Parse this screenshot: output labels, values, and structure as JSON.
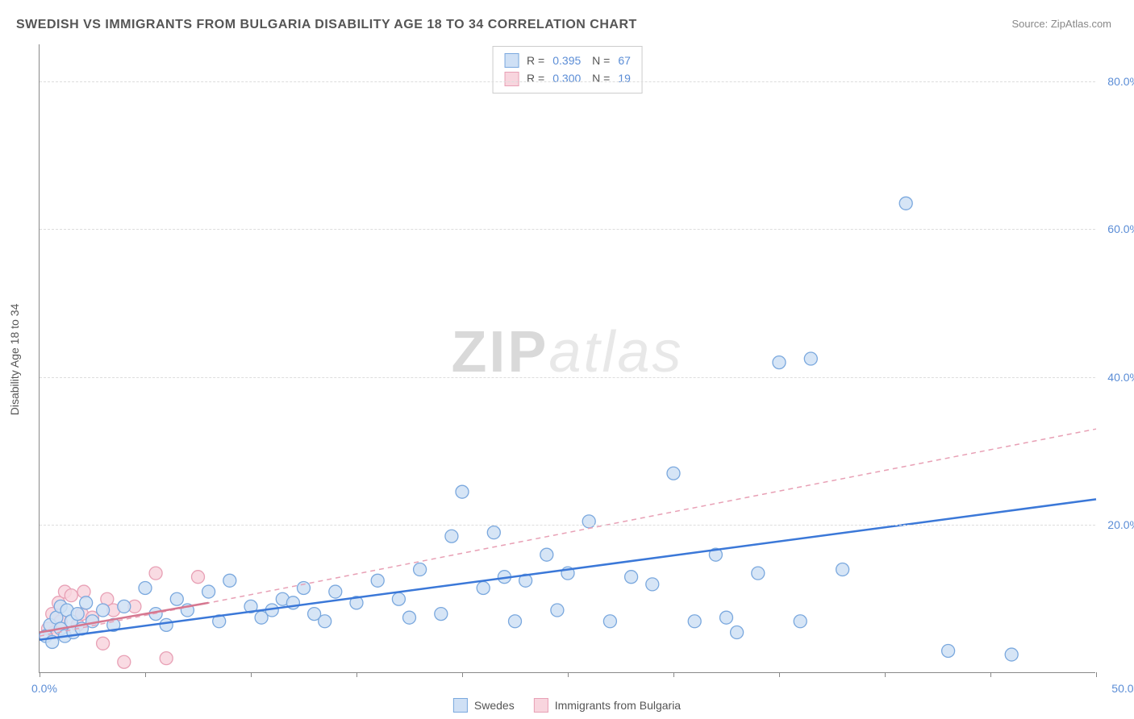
{
  "title": "SWEDISH VS IMMIGRANTS FROM BULGARIA DISABILITY AGE 18 TO 34 CORRELATION CHART",
  "source_label": "Source: ZipAtlas.com",
  "yaxis_title": "Disability Age 18 to 34",
  "watermark": {
    "zip": "ZIP",
    "atlas": "atlas"
  },
  "chart": {
    "type": "scatter",
    "background_color": "#ffffff",
    "grid_color": "#dddddd",
    "axis_color": "#888888",
    "xlim": [
      0,
      50
    ],
    "ylim": [
      0,
      85
    ],
    "xticks_minor": [
      0,
      5,
      10,
      15,
      20,
      25,
      30,
      35,
      40,
      45,
      50
    ],
    "xtick_labels": {
      "0": "0.0%",
      "50": "50.0%"
    },
    "yticks": [
      20,
      40,
      60,
      80
    ],
    "ytick_labels": {
      "20": "20.0%",
      "40": "40.0%",
      "60": "60.0%",
      "80": "80.0%"
    },
    "tick_fontsize": 14,
    "tick_color": "#5b8dd6",
    "label_fontsize": 14,
    "title_fontsize": 16,
    "marker_radius": 8,
    "series": [
      {
        "name": "Swedes",
        "fill": "#cfe0f5",
        "stroke": "#7aa8de",
        "R": "0.395",
        "N": "67",
        "trend": {
          "x1": 0,
          "y1": 4.5,
          "x2": 50,
          "y2": 23.5,
          "stroke": "#3b78d8",
          "width": 2.5,
          "dash": "none"
        },
        "points": [
          [
            0.3,
            5.0
          ],
          [
            0.5,
            6.5
          ],
          [
            0.6,
            4.2
          ],
          [
            0.8,
            7.5
          ],
          [
            1.0,
            6.0
          ],
          [
            1.0,
            9.0
          ],
          [
            1.2,
            5.0
          ],
          [
            1.3,
            8.5
          ],
          [
            1.5,
            7.0
          ],
          [
            1.6,
            5.5
          ],
          [
            1.8,
            8.0
          ],
          [
            2.0,
            6.0
          ],
          [
            2.2,
            9.5
          ],
          [
            2.5,
            7.0
          ],
          [
            3.0,
            8.5
          ],
          [
            3.5,
            6.5
          ],
          [
            4.0,
            9.0
          ],
          [
            5.0,
            11.5
          ],
          [
            5.5,
            8.0
          ],
          [
            6.0,
            6.5
          ],
          [
            6.5,
            10.0
          ],
          [
            7.0,
            8.5
          ],
          [
            8.0,
            11.0
          ],
          [
            8.5,
            7.0
          ],
          [
            9.0,
            12.5
          ],
          [
            10.0,
            9.0
          ],
          [
            10.5,
            7.5
          ],
          [
            11.0,
            8.5
          ],
          [
            11.5,
            10.0
          ],
          [
            12.0,
            9.5
          ],
          [
            12.5,
            11.5
          ],
          [
            13.0,
            8.0
          ],
          [
            13.5,
            7.0
          ],
          [
            14.0,
            11.0
          ],
          [
            15.0,
            9.5
          ],
          [
            16.0,
            12.5
          ],
          [
            17.0,
            10.0
          ],
          [
            17.5,
            7.5
          ],
          [
            18.0,
            14.0
          ],
          [
            19.0,
            8.0
          ],
          [
            19.5,
            18.5
          ],
          [
            20.0,
            24.5
          ],
          [
            21.0,
            11.5
          ],
          [
            21.5,
            19.0
          ],
          [
            22.0,
            13.0
          ],
          [
            22.5,
            7.0
          ],
          [
            23.0,
            12.5
          ],
          [
            24.0,
            16.0
          ],
          [
            24.5,
            8.5
          ],
          [
            25.0,
            13.5
          ],
          [
            26.0,
            20.5
          ],
          [
            27.0,
            7.0
          ],
          [
            28.0,
            13.0
          ],
          [
            29.0,
            12.0
          ],
          [
            30.0,
            27.0
          ],
          [
            31.0,
            7.0
          ],
          [
            32.0,
            16.0
          ],
          [
            33.0,
            5.5
          ],
          [
            34.0,
            13.5
          ],
          [
            35.0,
            42.0
          ],
          [
            36.0,
            7.0
          ],
          [
            36.5,
            42.5
          ],
          [
            38.0,
            14.0
          ],
          [
            41.0,
            63.5
          ],
          [
            43.0,
            3.0
          ],
          [
            46.0,
            2.5
          ],
          [
            32.5,
            7.5
          ]
        ]
      },
      {
        "name": "Immigrants from Bulgaria",
        "fill": "#f8d5de",
        "stroke": "#e8a0b5",
        "R": "0.300",
        "N": "19",
        "trend": {
          "x1": 0,
          "y1": 5.0,
          "x2": 50,
          "y2": 33.0,
          "stroke": "#e8a0b5",
          "width": 1.5,
          "dash": "6,5"
        },
        "trend_solid": {
          "x1": 0,
          "y1": 5.5,
          "x2": 8,
          "y2": 9.5,
          "stroke": "#d67790",
          "width": 2.5
        },
        "points": [
          [
            0.4,
            6.0
          ],
          [
            0.6,
            8.0
          ],
          [
            0.7,
            5.5
          ],
          [
            0.9,
            9.5
          ],
          [
            1.0,
            7.0
          ],
          [
            1.2,
            11.0
          ],
          [
            1.5,
            10.5
          ],
          [
            1.8,
            6.5
          ],
          [
            2.0,
            8.0
          ],
          [
            2.1,
            11.0
          ],
          [
            2.5,
            7.5
          ],
          [
            3.0,
            4.0
          ],
          [
            3.2,
            10.0
          ],
          [
            3.5,
            8.5
          ],
          [
            4.0,
            1.5
          ],
          [
            4.5,
            9.0
          ],
          [
            5.5,
            13.5
          ],
          [
            6.0,
            2.0
          ],
          [
            7.5,
            13.0
          ]
        ]
      }
    ]
  },
  "legend_bottom": [
    {
      "swatch": "blue",
      "label": "Swedes"
    },
    {
      "swatch": "pink",
      "label": "Immigrants from Bulgaria"
    }
  ]
}
